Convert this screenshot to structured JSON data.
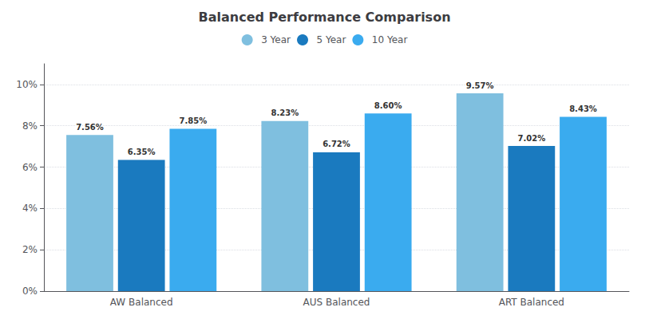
{
  "chart_data": {
    "type": "bar",
    "title": "Balanced Performance Comparison",
    "categories": [
      "AW Balanced",
      "AUS Balanced",
      "ART Balanced"
    ],
    "series": [
      {
        "name": "3 Year",
        "color": "#7fbfdf",
        "values": [
          7.56,
          8.23,
          9.57
        ],
        "value_labels": [
          "7.56%",
          "8.23%",
          "9.57%"
        ]
      },
      {
        "name": "5 Year",
        "color": "#1a7abf",
        "values": [
          6.35,
          6.72,
          7.02
        ],
        "value_labels": [
          "6.35%",
          "6.72%",
          "7.02%"
        ]
      },
      {
        "name": "10 Year",
        "color": "#3aabef",
        "values": [
          7.85,
          8.6,
          8.43
        ],
        "value_labels": [
          "7.85%",
          "8.60%",
          "8.43%"
        ]
      }
    ],
    "ylim": [
      0,
      11.0
    ],
    "yticks": [
      {
        "value": 0,
        "label": "0%"
      },
      {
        "value": 2,
        "label": "2%"
      },
      {
        "value": 4,
        "label": "4%"
      },
      {
        "value": 6,
        "label": "6%"
      },
      {
        "value": 8,
        "label": "8%"
      },
      {
        "value": 10,
        "label": "10%"
      }
    ],
    "grid": true,
    "legend": "top",
    "data_labels": true
  }
}
